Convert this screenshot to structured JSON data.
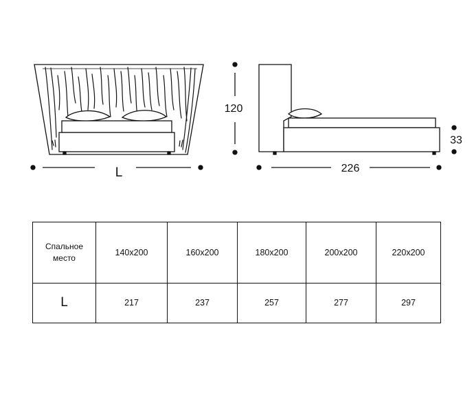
{
  "front_view": {
    "dimension_label": "L"
  },
  "side_view": {
    "height_label": "120",
    "frame_height_label": "33",
    "length_label": "226"
  },
  "table": {
    "header_label_line1": "Спальное",
    "header_label_line2": "место",
    "sizes": [
      "140x200",
      "160x200",
      "180x200",
      "200x200",
      "220x200"
    ],
    "row_label": "L",
    "lengths": [
      "217",
      "237",
      "257",
      "277",
      "297"
    ]
  },
  "colors": {
    "line": "#111111",
    "background": "#ffffff"
  }
}
